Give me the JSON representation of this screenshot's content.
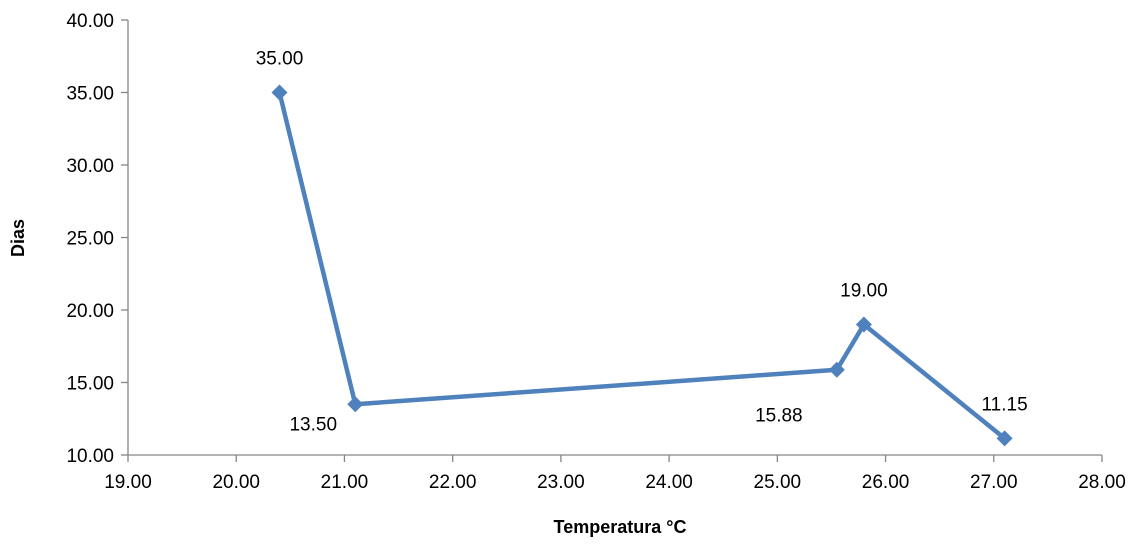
{
  "chart_data": {
    "type": "scatter",
    "xlabel": "Temperatura °C",
    "ylabel": "Dias",
    "xlim": [
      19,
      28
    ],
    "ylim": [
      10,
      40
    ],
    "x_ticks": [
      "19.00",
      "20.00",
      "21.00",
      "22.00",
      "23.00",
      "24.00",
      "25.00",
      "26.00",
      "27.00",
      "28.00"
    ],
    "y_ticks": [
      "10.00",
      "15.00",
      "20.00",
      "25.00",
      "30.00",
      "35.00",
      "40.00"
    ],
    "grid": false,
    "legend": "none",
    "series": [
      {
        "points": [
          {
            "x": 20.4,
            "y": 35.0,
            "label": "35.00"
          },
          {
            "x": 21.1,
            "y": 13.5,
            "label": "13.50"
          },
          {
            "x": 25.55,
            "y": 15.88,
            "label": "15.88"
          },
          {
            "x": 25.8,
            "y": 19.0,
            "label": "19.00"
          },
          {
            "x": 27.1,
            "y": 11.15,
            "label": "11.15"
          }
        ],
        "color": "#4F81BD",
        "marker": "diamond",
        "connected": true
      }
    ]
  }
}
